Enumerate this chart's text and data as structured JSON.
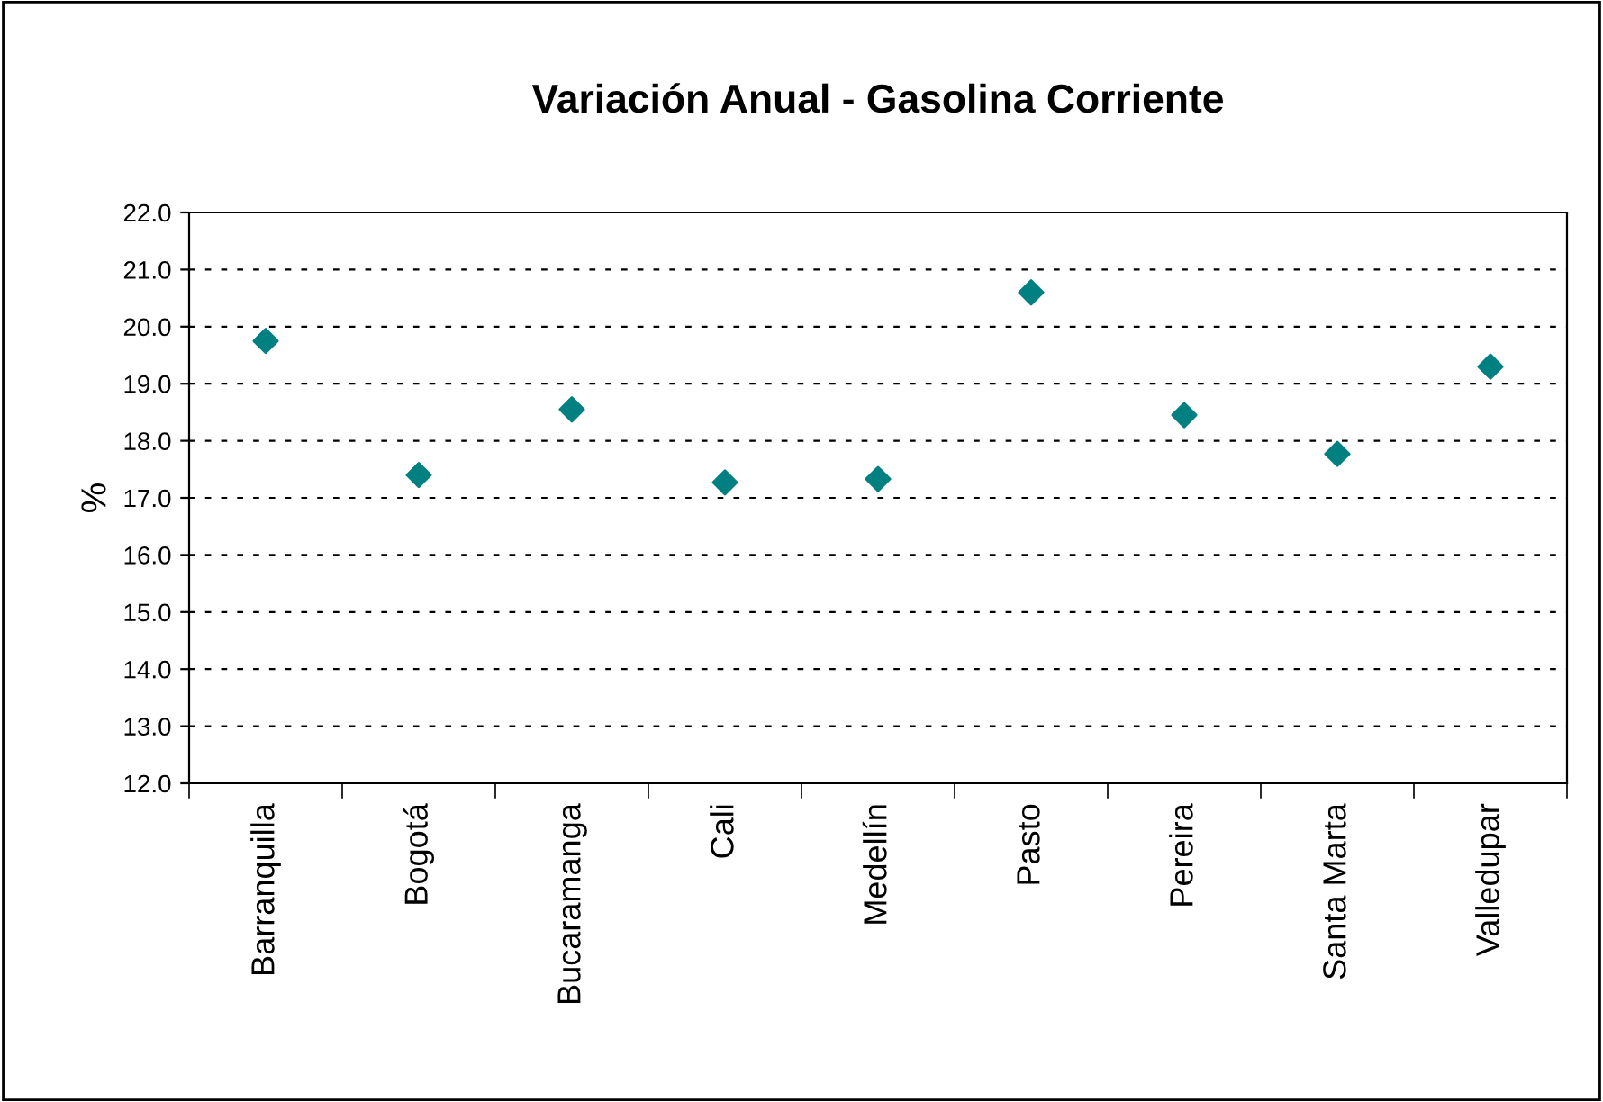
{
  "chart_data": {
    "type": "scatter",
    "title": "Variación Anual - Gasolina Corriente",
    "ylabel": "%",
    "categories": [
      "Barranquilla",
      "Bogotá",
      "Bucaramanga",
      "Cali",
      "Medellín",
      "Pasto",
      "Pereira",
      "Santa Marta",
      "Valledupar"
    ],
    "series": [
      {
        "color": "#008080",
        "values": [
          19.75,
          17.4,
          18.55,
          17.27,
          17.33,
          20.6,
          18.45,
          17.77,
          19.3
        ]
      }
    ],
    "ylim": [
      12,
      22
    ],
    "yticks": [
      {
        "value": 12,
        "label": "12.0"
      },
      {
        "value": 13,
        "label": "13.0"
      },
      {
        "value": 14,
        "label": "14.0"
      },
      {
        "value": 15,
        "label": "15.0"
      },
      {
        "value": 16,
        "label": "16.0"
      },
      {
        "value": 17,
        "label": "17.0"
      },
      {
        "value": 18,
        "label": "18.0"
      },
      {
        "value": 19,
        "label": "19.0"
      },
      {
        "value": 20,
        "label": "20.0"
      },
      {
        "value": 21,
        "label": "21.0"
      },
      {
        "value": 22,
        "label": "22.0"
      }
    ],
    "grid": "y",
    "marker": "diamond",
    "legend": false
  }
}
